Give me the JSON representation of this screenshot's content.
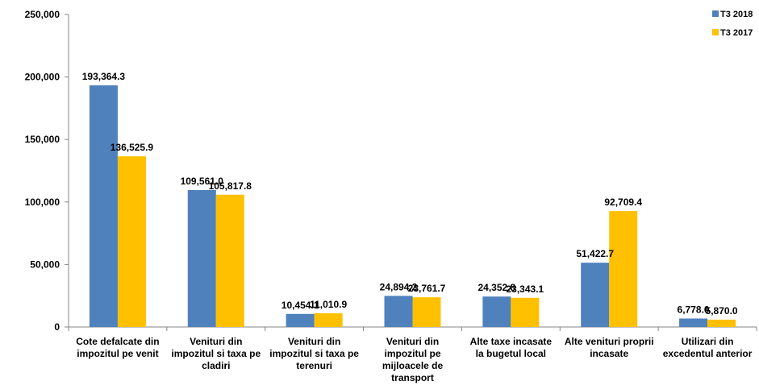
{
  "chart_data": {
    "type": "bar",
    "categories": [
      [
        "Cote defalcate din",
        "impozitul pe venit"
      ],
      [
        "Venituri din",
        "impozitul si taxa pe",
        "cladiri"
      ],
      [
        "Venituri din",
        "impozitul si taxa pe",
        "terenuri"
      ],
      [
        "Venituri din",
        "impozitul pe",
        "mijloacele de",
        "transport"
      ],
      [
        "Alte taxe incasate",
        "la bugetul local"
      ],
      [
        "Alte venituri proprii",
        "incasate"
      ],
      [
        "Utilizari din",
        "excedentul anterior"
      ]
    ],
    "series": [
      {
        "name": "T3 2018",
        "color": "#4F81BD",
        "values": [
          193364.3,
          109561.0,
          10454.1,
          24894.2,
          24352.8,
          51422.7,
          6778.0
        ],
        "labels": [
          "193,364.3",
          "109,561.0",
          "10,454.1",
          "24,894.2",
          "24,352.8",
          "51,422.7",
          "6,778.0"
        ]
      },
      {
        "name": "T3 2017",
        "color": "#FFC000",
        "values": [
          136525.9,
          105817.8,
          11010.9,
          23761.7,
          23343.1,
          92709.4,
          5870.0
        ],
        "labels": [
          "136,525.9",
          "105,817.8",
          "11,010.9",
          "23,761.7",
          "23,343.1",
          "92,709.4",
          "5,870.0"
        ]
      }
    ],
    "ylim": [
      0,
      250000
    ],
    "yticks": [
      0,
      50000,
      100000,
      150000,
      200000,
      250000
    ],
    "ytick_labels": [
      "0",
      "50,000",
      "100,000",
      "150,000",
      "200,000",
      "250,000"
    ],
    "legend_position": "top-right",
    "grid": false,
    "title": "",
    "xlabel": "",
    "ylabel": ""
  }
}
